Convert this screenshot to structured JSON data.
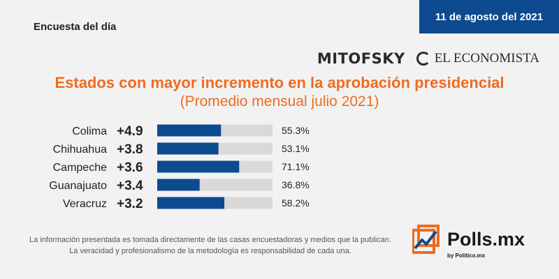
{
  "header": {
    "survey_label": "Encuesta del día",
    "date": "11 de agosto del 2021"
  },
  "logos": {
    "mitofsky": "MITOFSKY",
    "economista": "EL ECONOMISTA"
  },
  "footer": {
    "disclaimer_line1": "La información presentada es tomada directamente de las casas encuestadoras y medios que la publican.",
    "disclaimer_line2": "La veracidad y profesionalismo de la metodología es responsabilidad de cada una.",
    "brand_name": "Polls.mx",
    "brand_by": "by Politico.mx"
  },
  "colors": {
    "accent_orange": "#ef6b1f",
    "bar_fill": "#0d4a8f",
    "bar_track": "#d9d9d9"
  },
  "chart_data": {
    "type": "bar",
    "title": "Estados con mayor incremento en la aprobación presidencial",
    "subtitle": "(Promedio mensual julio 2021)",
    "categories": [
      "Colima",
      "Chihuahua",
      "Campeche",
      "Guanajuato",
      "Veracruz"
    ],
    "increments": [
      "+4.9",
      "+3.8",
      "+3.6",
      "+3.4",
      "+3.2"
    ],
    "values": [
      55.3,
      53.1,
      71.1,
      36.8,
      58.2
    ],
    "value_labels": [
      "55.3%",
      "53.1%",
      "71.1%",
      "36.8%",
      "58.2%"
    ],
    "xlim": [
      0,
      100
    ],
    "grid": false
  }
}
